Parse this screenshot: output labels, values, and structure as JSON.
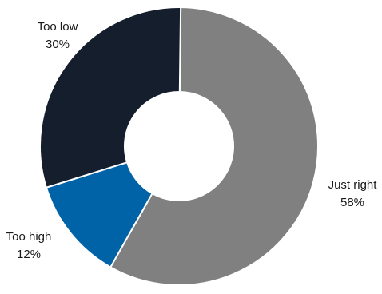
{
  "chart_data": {
    "type": "pie",
    "title": "",
    "hole": true,
    "categories": [
      "Just right",
      "Too high",
      "Too low"
    ],
    "values": [
      58,
      12,
      30
    ],
    "value_labels": [
      "58%",
      "12%",
      "30%"
    ],
    "colors": [
      "#808080",
      "#0063A8",
      "#141E2C"
    ],
    "legend": "none"
  }
}
